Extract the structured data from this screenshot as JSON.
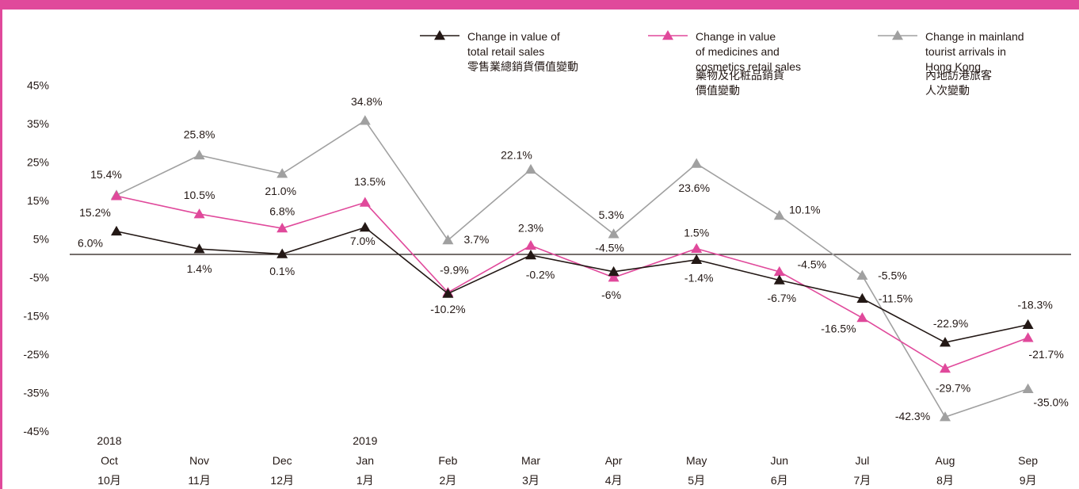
{
  "chart_data": {
    "type": "line",
    "categories": [
      "2018\nOct\n10月",
      "Nov\n11月",
      "Dec\n12月",
      "2019\nJan\n1月",
      "Feb\n2月",
      "Mar\n3月",
      "Apr\n4月",
      "May\n5月",
      "Jun\n6月",
      "Jul\n7月",
      "Aug\n8月",
      "Sep\n9月"
    ],
    "series": [
      {
        "name": "Change in value of\ntotal retail sales\n零售業總銷貨價值變動",
        "color": "#231815",
        "values": [
          6.0,
          1.4,
          0.1,
          7.0,
          -10.2,
          -0.2,
          -4.5,
          -1.4,
          -6.7,
          -11.5,
          -22.9,
          -18.3
        ],
        "value_labels": [
          "6.0%",
          "1.4%",
          "0.1%",
          "7.0%",
          "-10.2%",
          "-0.2%",
          "-4.5%",
          "-1.4%",
          "-6.7%",
          "-11.5%",
          "-22.9%",
          "-18.3%"
        ]
      },
      {
        "name": "Change in value\nof medicines and\ncosmetics retail sales\n\n藥物及化粧品銷貨\n價值變動",
        "color": "#e0499b",
        "values": [
          15.2,
          10.5,
          6.8,
          13.5,
          -9.9,
          2.3,
          -6,
          1.5,
          -4.5,
          -16.5,
          -29.7,
          -21.7
        ],
        "value_labels": [
          "15.2%",
          "10.5%",
          "6.8%",
          "13.5%",
          "-9.9%",
          "2.3%",
          "-6%",
          "1.5%",
          "-4.5%",
          "-16.5%",
          "-29.7%",
          "-21.7%"
        ]
      },
      {
        "name": "Change in mainland\ntourist arrivals in\nHong Kong\n\n內地訪港旅客\n人次變動",
        "color": "#a0a0a0",
        "values": [
          15.4,
          25.8,
          21.0,
          34.8,
          3.7,
          22.1,
          5.3,
          23.6,
          10.1,
          -5.5,
          -42.3,
          -35.0
        ],
        "value_labels": [
          "15.4%",
          "25.8%",
          "21.0%",
          "34.8%",
          "3.7%",
          "22.1%",
          "5.3%",
          "23.6%",
          "10.1%",
          "-5.5%",
          "-42.3%",
          "-35.0%"
        ]
      }
    ],
    "ylim": [
      -50,
      50
    ],
    "yticks": [
      {
        "value": -45,
        "label": "-45%"
      },
      {
        "value": -35,
        "label": "-35%"
      },
      {
        "value": -25,
        "label": "-25%"
      },
      {
        "value": -15,
        "label": "-15%"
      },
      {
        "value": -5,
        "label": "-5%"
      },
      {
        "value": 5,
        "label": "5%"
      },
      {
        "value": 15,
        "label": "15%"
      },
      {
        "value": 25,
        "label": "25%"
      },
      {
        "value": 35,
        "label": "35%"
      },
      {
        "value": 45,
        "label": "45%"
      }
    ],
    "grid": false
  }
}
